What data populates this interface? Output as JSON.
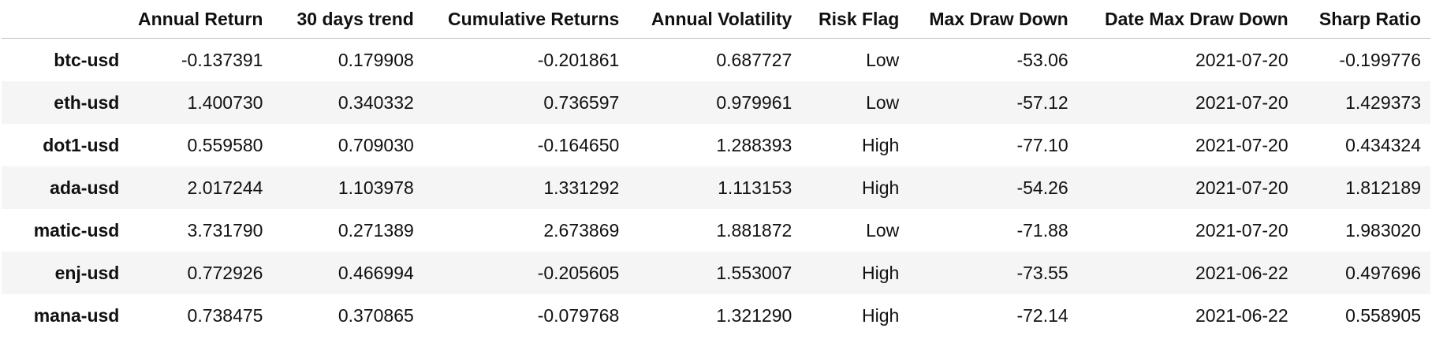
{
  "table": {
    "columns": [
      "",
      "Annual Return",
      "30 days trend",
      "Cumulative Returns",
      "Annual Volatility",
      "Risk Flag",
      "Max Draw Down",
      "Date Max Draw Down",
      "Sharp Ratio"
    ],
    "rows": [
      {
        "ticker": "btc-usd",
        "annual_return": "-0.137391",
        "trend_30d": "0.179908",
        "cumulative_returns": "-0.201861",
        "annual_volatility": "0.687727",
        "risk_flag": "Low",
        "max_draw_down": "-53.06",
        "date_max_draw_down": "2021-07-20",
        "sharp_ratio": "-0.199776"
      },
      {
        "ticker": "eth-usd",
        "annual_return": "1.400730",
        "trend_30d": "0.340332",
        "cumulative_returns": "0.736597",
        "annual_volatility": "0.979961",
        "risk_flag": "Low",
        "max_draw_down": "-57.12",
        "date_max_draw_down": "2021-07-20",
        "sharp_ratio": "1.429373"
      },
      {
        "ticker": "dot1-usd",
        "annual_return": "0.559580",
        "trend_30d": "0.709030",
        "cumulative_returns": "-0.164650",
        "annual_volatility": "1.288393",
        "risk_flag": "High",
        "max_draw_down": "-77.10",
        "date_max_draw_down": "2021-07-20",
        "sharp_ratio": "0.434324"
      },
      {
        "ticker": "ada-usd",
        "annual_return": "2.017244",
        "trend_30d": "1.103978",
        "cumulative_returns": "1.331292",
        "annual_volatility": "1.113153",
        "risk_flag": "High",
        "max_draw_down": "-54.26",
        "date_max_draw_down": "2021-07-20",
        "sharp_ratio": "1.812189"
      },
      {
        "ticker": "matic-usd",
        "annual_return": "3.731790",
        "trend_30d": "0.271389",
        "cumulative_returns": "2.673869",
        "annual_volatility": "1.881872",
        "risk_flag": "Low",
        "max_draw_down": "-71.88",
        "date_max_draw_down": "2021-07-20",
        "sharp_ratio": "1.983020"
      },
      {
        "ticker": "enj-usd",
        "annual_return": "0.772926",
        "trend_30d": "0.466994",
        "cumulative_returns": "-0.205605",
        "annual_volatility": "1.553007",
        "risk_flag": "High",
        "max_draw_down": "-73.55",
        "date_max_draw_down": "2021-06-22",
        "sharp_ratio": "0.497696"
      },
      {
        "ticker": "mana-usd",
        "annual_return": "0.738475",
        "trend_30d": "0.370865",
        "cumulative_returns": "-0.079768",
        "annual_volatility": "1.321290",
        "risk_flag": "High",
        "max_draw_down": "-72.14",
        "date_max_draw_down": "2021-06-22",
        "sharp_ratio": "0.558905"
      }
    ]
  },
  "colors": {
    "row_stripe": "#f5f5f5",
    "header_border": "#bdbdbd",
    "text": "#111111"
  }
}
